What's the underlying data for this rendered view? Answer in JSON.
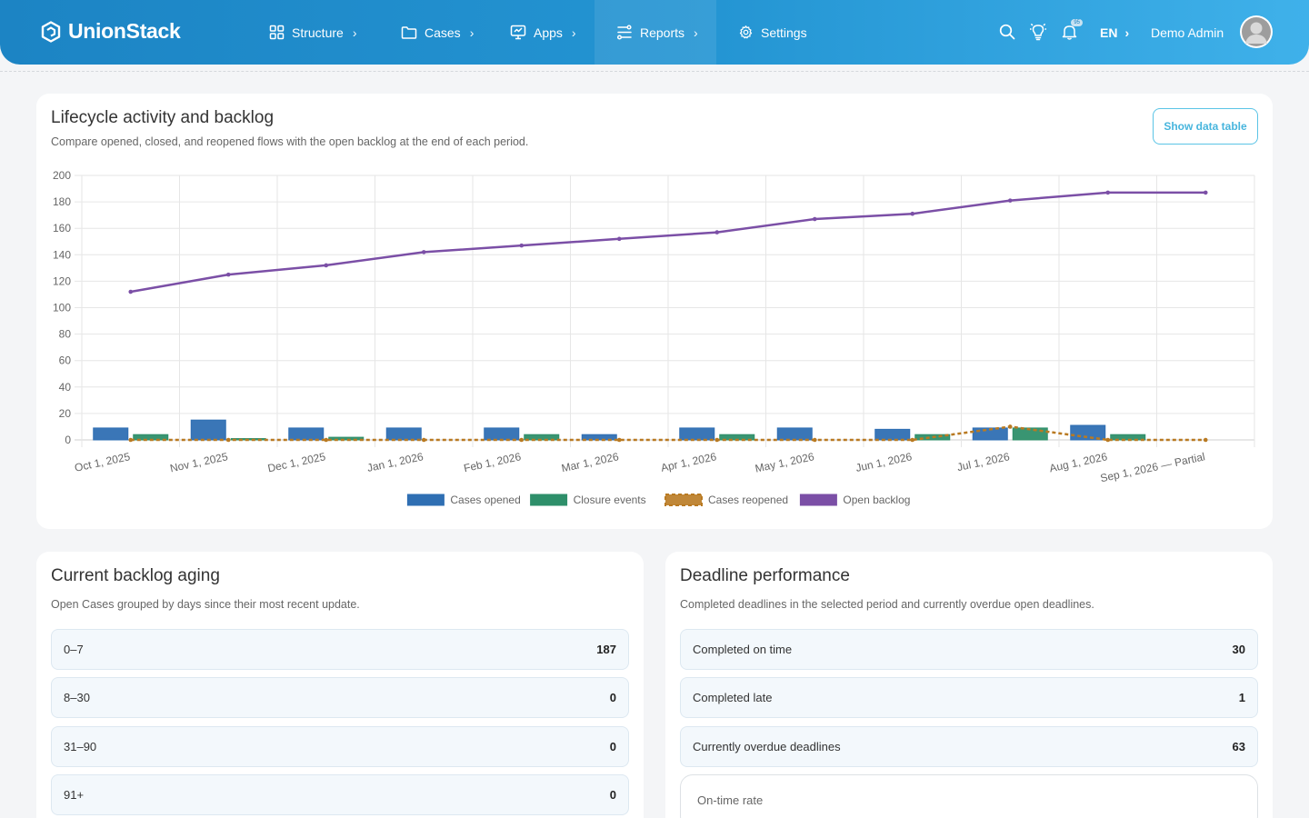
{
  "app": {
    "brand": "UnionStack"
  },
  "nav": {
    "items": [
      {
        "label": "Structure",
        "icon": "grid-icon"
      },
      {
        "label": "Cases",
        "icon": "folder-icon"
      },
      {
        "label": "Apps",
        "icon": "monitor-icon"
      },
      {
        "label": "Reports",
        "icon": "report-flow-icon"
      },
      {
        "label": "Settings",
        "icon": "gear-icon"
      }
    ],
    "active": "Reports",
    "language": "EN",
    "user_name": "Demo Admin",
    "notification_badge": "95"
  },
  "lifecycle": {
    "title": "Lifecycle activity and backlog",
    "subtitle": "Compare opened, closed, and reopened flows with the open backlog at the end of each period.",
    "show_table_label": "Show data table"
  },
  "chart_data": {
    "type": "bar",
    "categories": [
      "Oct 1, 2025",
      "Nov 1, 2025",
      "Dec 1, 2025",
      "Jan 1, 2026",
      "Feb 1, 2026",
      "Mar 1, 2026",
      "Apr 1, 2026",
      "May 1, 2026",
      "Jun 1, 2026",
      "Jul 1, 2026",
      "Aug 1, 2026",
      "Sep 1, 2026 — Partial"
    ],
    "series": [
      {
        "name": "Cases opened",
        "kind": "bar",
        "color": "#2f6fb3",
        "values": [
          9,
          15,
          9,
          9,
          9,
          4,
          9,
          9,
          8,
          9,
          11,
          0
        ]
      },
      {
        "name": "Closure events",
        "kind": "bar",
        "color": "#2e8f6a",
        "values": [
          4,
          1,
          2,
          0,
          4,
          0,
          4,
          0,
          4,
          9,
          4,
          0
        ]
      },
      {
        "name": "Cases reopened",
        "kind": "dashed-line",
        "color": "#b97a22",
        "values": [
          0,
          0,
          0,
          0,
          0,
          0,
          0,
          0,
          0,
          10,
          0,
          0
        ]
      },
      {
        "name": "Open backlog",
        "kind": "line",
        "color": "#7b4fa6",
        "values": [
          112,
          125,
          132,
          142,
          147,
          152,
          157,
          167,
          171,
          181,
          187,
          187
        ]
      }
    ],
    "ylim": [
      0,
      200
    ],
    "yticks": [
      0,
      20,
      40,
      60,
      80,
      100,
      120,
      140,
      160,
      180,
      200
    ],
    "grid": true,
    "legend": "bottom"
  },
  "aging": {
    "title": "Current backlog aging",
    "subtitle": "Open Cases grouped by days since their most recent update.",
    "rows": [
      {
        "label": "0–7",
        "value": "187"
      },
      {
        "label": "8–30",
        "value": "0"
      },
      {
        "label": "31–90",
        "value": "0"
      },
      {
        "label": "91+",
        "value": "0"
      }
    ]
  },
  "deadline": {
    "title": "Deadline performance",
    "subtitle": "Completed deadlines in the selected period and currently overdue open deadlines.",
    "rows": [
      {
        "label": "Completed on time",
        "value": "30"
      },
      {
        "label": "Completed late",
        "value": "1"
      },
      {
        "label": "Currently overdue deadlines",
        "value": "63"
      }
    ],
    "rate_label": "On-time rate"
  }
}
